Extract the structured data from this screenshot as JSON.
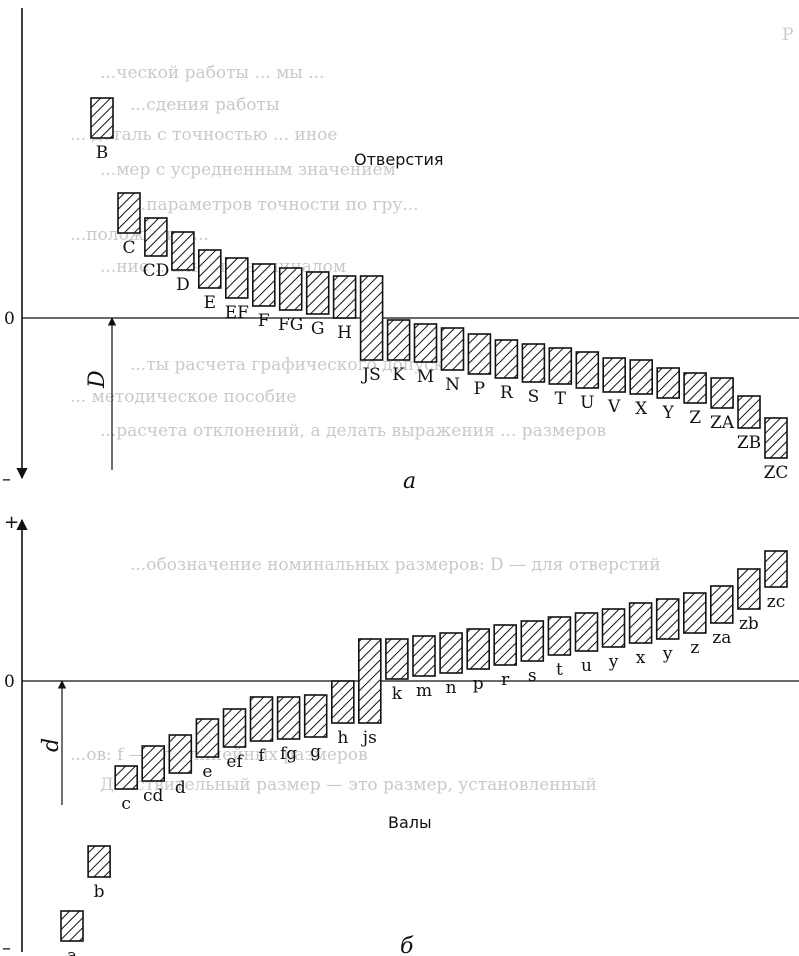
{
  "background_text": [
    "Р",
    "...ческой работы ... мы ...",
    "...сдения работы",
    "... деталь с точностью ... иное",
    "...мер с усредненным значением",
    "...параметров точности по гру...",
    "...положение ...",
    "...ние ...альным номиналом",
    "...ты расчета графического допуска",
    "... методическое пособие",
    "...расчета отклонений, а делать выражения ... размеров",
    "...обозначение номинальных размеров: D — для отверстий",
    "...ов: f — для линейных размеров",
    "Действительный размер — это размер, установленный"
  ],
  "diagrams": [
    {
      "id": "holes",
      "title": "Отверстия",
      "panel_letter": "а",
      "zero_label": "0",
      "plus_label": "",
      "minus_label": "–",
      "size_symbol": "D",
      "bars": [
        {
          "label": "B",
          "lower": 1.8,
          "upper": 2.2
        },
        {
          "label": "C",
          "lower": 0.85,
          "upper": 1.25
        },
        {
          "label": "CD",
          "lower": 0.62,
          "upper": 1.0
        },
        {
          "label": "D",
          "lower": 0.48,
          "upper": 0.86
        },
        {
          "label": "E",
          "lower": 0.3,
          "upper": 0.68
        },
        {
          "label": "EF",
          "lower": 0.2,
          "upper": 0.6
        },
        {
          "label": "F",
          "lower": 0.12,
          "upper": 0.54
        },
        {
          "label": "FG",
          "lower": 0.08,
          "upper": 0.5
        },
        {
          "label": "G",
          "lower": 0.04,
          "upper": 0.46
        },
        {
          "label": "H",
          "lower": 0.0,
          "upper": 0.42
        },
        {
          "label": "JS",
          "lower": -0.42,
          "upper": 0.42
        },
        {
          "label": "K",
          "lower": -0.42,
          "upper": -0.02
        },
        {
          "label": "M",
          "lower": -0.44,
          "upper": -0.06
        },
        {
          "label": "N",
          "lower": -0.52,
          "upper": -0.1
        },
        {
          "label": "P",
          "lower": -0.56,
          "upper": -0.16
        },
        {
          "label": "R",
          "lower": -0.6,
          "upper": -0.22
        },
        {
          "label": "S",
          "lower": -0.64,
          "upper": -0.26
        },
        {
          "label": "T",
          "lower": -0.66,
          "upper": -0.3
        },
        {
          "label": "U",
          "lower": -0.7,
          "upper": -0.34
        },
        {
          "label": "V",
          "lower": -0.74,
          "upper": -0.4
        },
        {
          "label": "X",
          "lower": -0.76,
          "upper": -0.42
        },
        {
          "label": "Y",
          "lower": -0.8,
          "upper": -0.5
        },
        {
          "label": "Z",
          "lower": -0.85,
          "upper": -0.55
        },
        {
          "label": "ZA",
          "lower": -0.9,
          "upper": -0.6
        },
        {
          "label": "ZB",
          "lower": -1.1,
          "upper": -0.78
        },
        {
          "label": "ZC",
          "lower": -1.4,
          "upper": -1.0
        }
      ]
    },
    {
      "id": "shafts",
      "title": "Валы",
      "panel_letter": "б",
      "zero_label": "0",
      "plus_label": "+",
      "minus_label": "–",
      "size_symbol": "d",
      "bars": [
        {
          "label": "a",
          "lower": -2.6,
          "upper": -2.3
        },
        {
          "label": "b",
          "lower": -1.96,
          "upper": -1.65
        },
        {
          "label": "c",
          "lower": -1.08,
          "upper": -0.85
        },
        {
          "label": "cd",
          "lower": -1.0,
          "upper": -0.65
        },
        {
          "label": "d",
          "lower": -0.92,
          "upper": -0.54
        },
        {
          "label": "e",
          "lower": -0.76,
          "upper": -0.38
        },
        {
          "label": "ef",
          "lower": -0.66,
          "upper": -0.28
        },
        {
          "label": "f",
          "lower": -0.6,
          "upper": -0.16
        },
        {
          "label": "fg",
          "lower": -0.58,
          "upper": -0.16
        },
        {
          "label": "g",
          "lower": -0.56,
          "upper": -0.14
        },
        {
          "label": "h",
          "lower": -0.42,
          "upper": 0.0
        },
        {
          "label": "js",
          "lower": -0.42,
          "upper": 0.42
        },
        {
          "label": "k",
          "lower": 0.02,
          "upper": 0.42
        },
        {
          "label": "m",
          "lower": 0.05,
          "upper": 0.45
        },
        {
          "label": "n",
          "lower": 0.08,
          "upper": 0.48
        },
        {
          "label": "p",
          "lower": 0.12,
          "upper": 0.52
        },
        {
          "label": "r",
          "lower": 0.16,
          "upper": 0.56
        },
        {
          "label": "s",
          "lower": 0.2,
          "upper": 0.6
        },
        {
          "label": "t",
          "lower": 0.26,
          "upper": 0.64
        },
        {
          "label": "u",
          "lower": 0.3,
          "upper": 0.68
        },
        {
          "label": "y",
          "lower": 0.34,
          "upper": 0.72
        },
        {
          "label": "x",
          "lower": 0.38,
          "upper": 0.78
        },
        {
          "label": "y",
          "lower": 0.42,
          "upper": 0.82
        },
        {
          "label": "z",
          "lower": 0.48,
          "upper": 0.88
        },
        {
          "label": "za",
          "lower": 0.58,
          "upper": 0.95
        },
        {
          "label": "zb",
          "lower": 0.72,
          "upper": 1.12
        },
        {
          "label": "zc",
          "lower": 0.94,
          "upper": 1.3
        }
      ]
    }
  ]
}
